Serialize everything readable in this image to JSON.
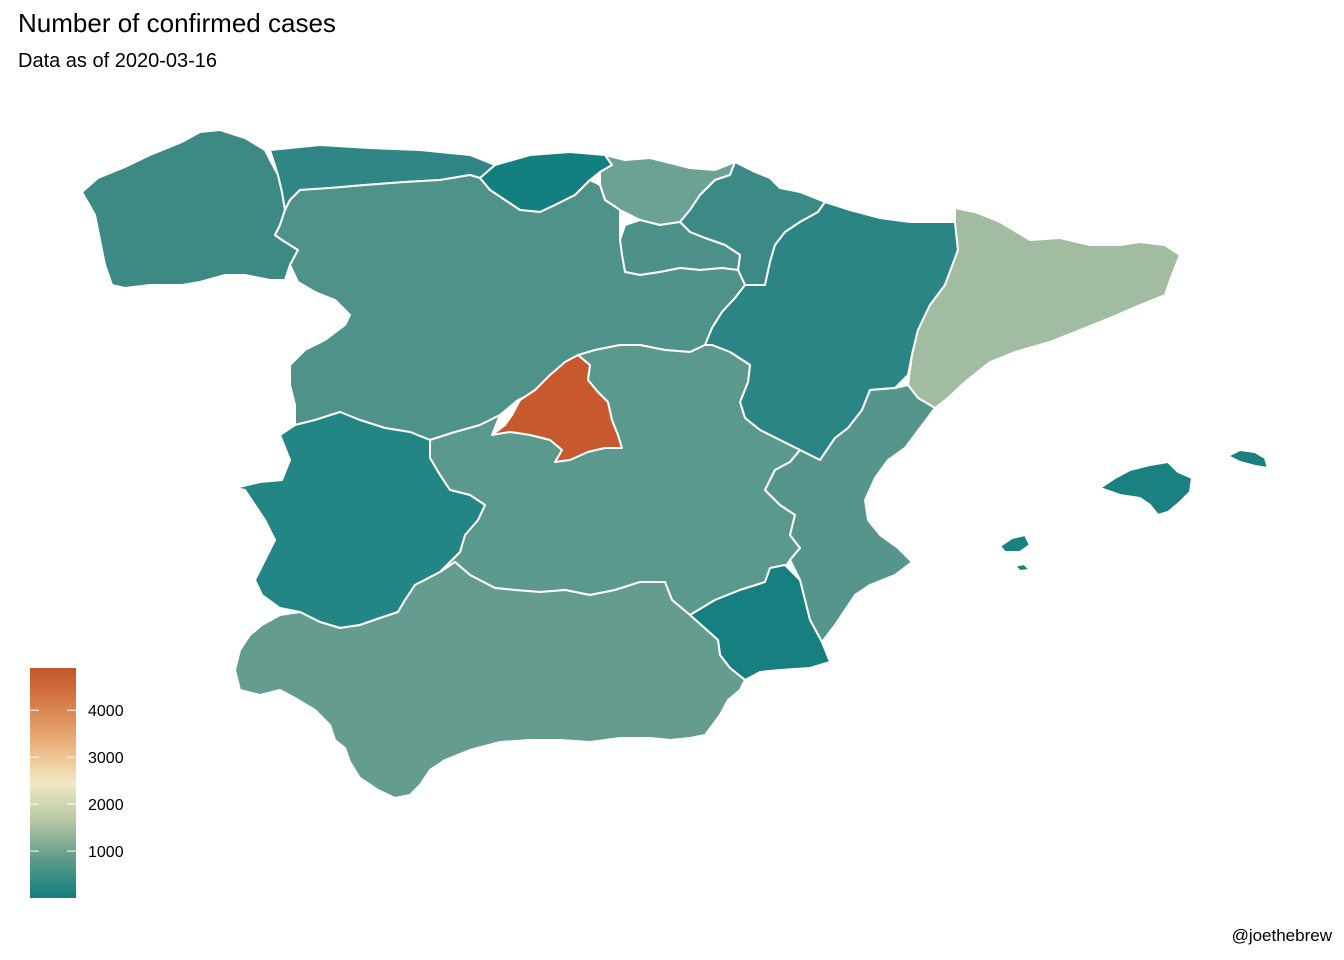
{
  "title": "Number of confirmed cases",
  "subtitle": "Data as of 2020-03-16",
  "caption": "@joethebrew",
  "legend": {
    "min": 0,
    "max": 4900,
    "ticks": [
      1000,
      2000,
      3000,
      4000
    ],
    "tick_labels": [
      "1000",
      "2000",
      "3000",
      "4000"
    ],
    "gradient_colors": [
      "#127f7f",
      "#5e9a8a",
      "#b5c6a4",
      "#f1e9c4",
      "#ecb27e",
      "#d8814b",
      "#c4552c"
    ]
  },
  "regions": [
    {
      "name": "Galicia",
      "value": 340,
      "color": "#3d8a85"
    },
    {
      "name": "Asturias",
      "value": 220,
      "color": "#2f8684"
    },
    {
      "name": "Cantabria",
      "value": 60,
      "color": "#137f7f"
    },
    {
      "name": "País Vasco",
      "value": 1200,
      "color": "#6ba293"
    },
    {
      "name": "Navarra",
      "value": 400,
      "color": "#3c8a86"
    },
    {
      "name": "La Rioja",
      "value": 500,
      "color": "#4d928a"
    },
    {
      "name": "Castilla y León",
      "value": 700,
      "color": "#4e928a"
    },
    {
      "name": "Aragón",
      "value": 250,
      "color": "#2b8584"
    },
    {
      "name": "Cataluña",
      "value": 1900,
      "color": "#a2bca1"
    },
    {
      "name": "Madrid",
      "value": 4700,
      "color": "#c8582d"
    },
    {
      "name": "Castilla-La Mancha",
      "value": 900,
      "color": "#5a998c"
    },
    {
      "name": "Extremadura",
      "value": 150,
      "color": "#238584"
    },
    {
      "name": "Comunidad Valenciana",
      "value": 800,
      "color": "#56958b"
    },
    {
      "name": "Murcia",
      "value": 90,
      "color": "#167f80"
    },
    {
      "name": "Andalucía",
      "value": 1000,
      "color": "#649c8f"
    },
    {
      "name": "Islas Baleares",
      "value": 100,
      "color": "#1b8080"
    }
  ]
}
